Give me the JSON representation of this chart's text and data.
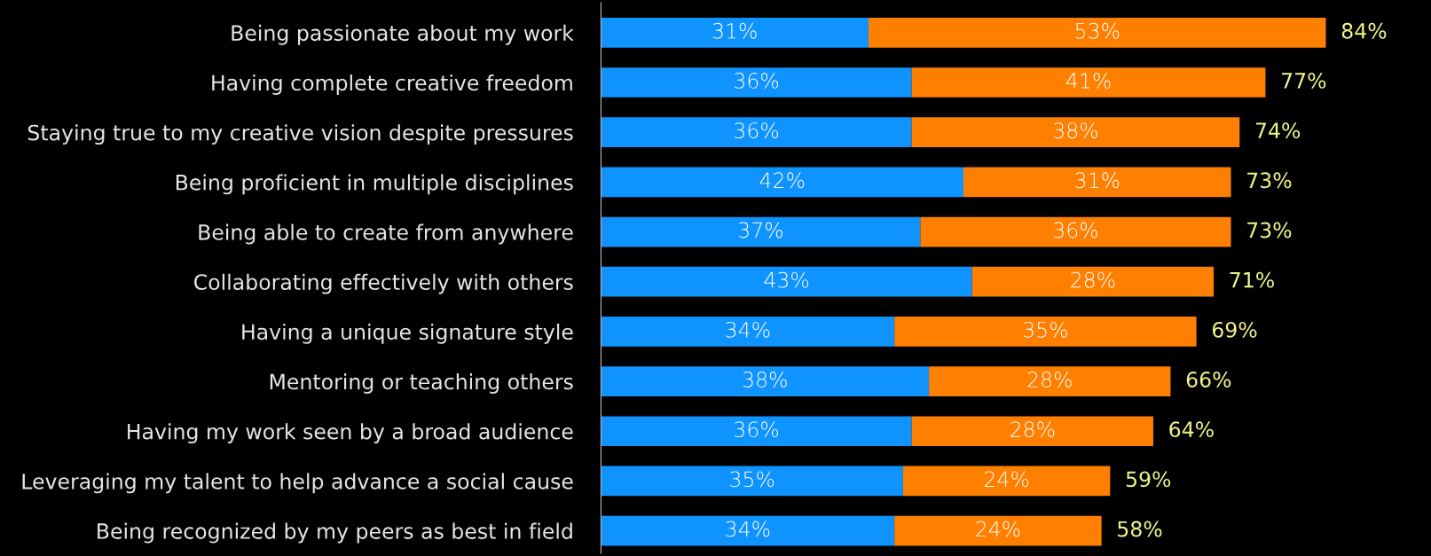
{
  "chart_data": {
    "type": "bar",
    "orientation": "horizontal",
    "stacked": true,
    "data_labels": true,
    "categories": [
      "Being passionate about my work",
      "Having complete creative freedom",
      "Staying true to my creative vision despite pressures",
      "Being proficient in multiple disciplines",
      "Being able to create from anywhere",
      "Collaborating effectively with others",
      "Having a unique signature style",
      "Mentoring or teaching others",
      "Having my work seen by a broad audience",
      "Leveraging my talent to help advance a social cause",
      "Being recognized by my peers as best in field"
    ],
    "series": [
      {
        "color": "#0f93ff",
        "values": [
          31,
          36,
          36,
          42,
          37,
          43,
          34,
          38,
          36,
          35,
          34
        ],
        "value_labels": [
          "31%",
          "36%",
          "36%",
          "42%",
          "37%",
          "43%",
          "34%",
          "38%",
          "36%",
          "35%",
          "34%"
        ]
      },
      {
        "color": "#ff7f00",
        "values": [
          53,
          41,
          38,
          31,
          36,
          28,
          35,
          28,
          28,
          24,
          24
        ],
        "value_labels": [
          "53%",
          "41%",
          "38%",
          "31%",
          "36%",
          "28%",
          "35%",
          "28%",
          "28%",
          "24%",
          "24%"
        ]
      }
    ],
    "totals": [
      "84%",
      "77%",
      "74%",
      "73%",
      "73%",
      "71%",
      "69%",
      "66%",
      "64%",
      "59%",
      "58%"
    ],
    "grid": false,
    "legend": false
  }
}
